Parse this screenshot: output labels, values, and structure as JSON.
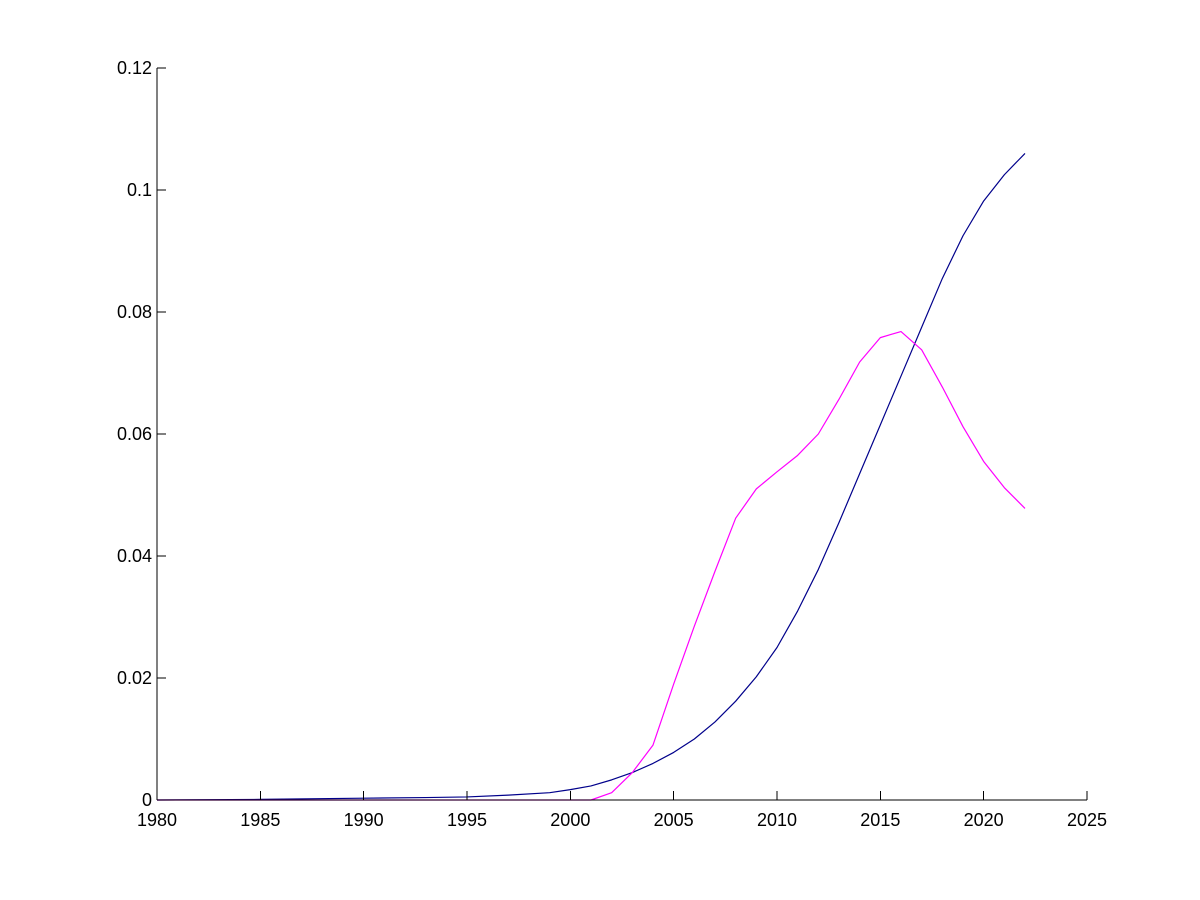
{
  "chart_data": {
    "type": "line",
    "title": "",
    "xlabel": "",
    "ylabel": "",
    "xlim": [
      1980,
      2025
    ],
    "ylim": [
      0,
      0.12
    ],
    "x_ticks": [
      1980,
      1985,
      1990,
      1995,
      2000,
      2005,
      2010,
      2015,
      2020,
      2025
    ],
    "y_ticks": [
      0,
      0.02,
      0.04,
      0.06,
      0.08,
      0.1,
      0.12
    ],
    "x_tick_labels": [
      "1980",
      "1985",
      "1990",
      "1995",
      "2000",
      "2005",
      "2010",
      "2015",
      "2020",
      "2025"
    ],
    "y_tick_labels": [
      "0",
      "0.02",
      "0.04",
      "0.06",
      "0.08",
      "0.1",
      "0.12"
    ],
    "grid": false,
    "legend": "none",
    "series": [
      {
        "color": "#00008b",
        "x": [
          1980,
          1985,
          1990,
          1993,
          1995,
          1997,
          1999,
          2000,
          2001,
          2002,
          2003,
          2004,
          2005,
          2006,
          2007,
          2008,
          2009,
          2010,
          2011,
          2012,
          2013,
          2014,
          2015,
          2016,
          2017,
          2018,
          2019,
          2020,
          2021,
          2022
        ],
        "y": [
          0,
          0.0001,
          0.0003,
          0.0004,
          0.0005,
          0.0008,
          0.0012,
          0.0017,
          0.0023,
          0.0033,
          0.0045,
          0.006,
          0.0078,
          0.01,
          0.0128,
          0.0162,
          0.0202,
          0.025,
          0.031,
          0.0378,
          0.0455,
          0.0535,
          0.0615,
          0.0695,
          0.0775,
          0.0855,
          0.0925,
          0.0982,
          0.1025,
          0.106
        ]
      },
      {
        "color": "#ff00ff",
        "x": [
          1980,
          1990,
          2000,
          2001,
          2002,
          2003,
          2004,
          2005,
          2006,
          2007,
          2008,
          2009,
          2010,
          2011,
          2012,
          2013,
          2014,
          2015,
          2016,
          2017,
          2018,
          2019,
          2020,
          2021,
          2022
        ],
        "y": [
          0,
          0,
          0,
          0,
          0.0012,
          0.0045,
          0.009,
          0.019,
          0.0285,
          0.0375,
          0.0462,
          0.051,
          0.0538,
          0.0565,
          0.06,
          0.0657,
          0.0718,
          0.0758,
          0.0768,
          0.0738,
          0.0677,
          0.0612,
          0.0555,
          0.0512,
          0.0478
        ]
      }
    ]
  }
}
